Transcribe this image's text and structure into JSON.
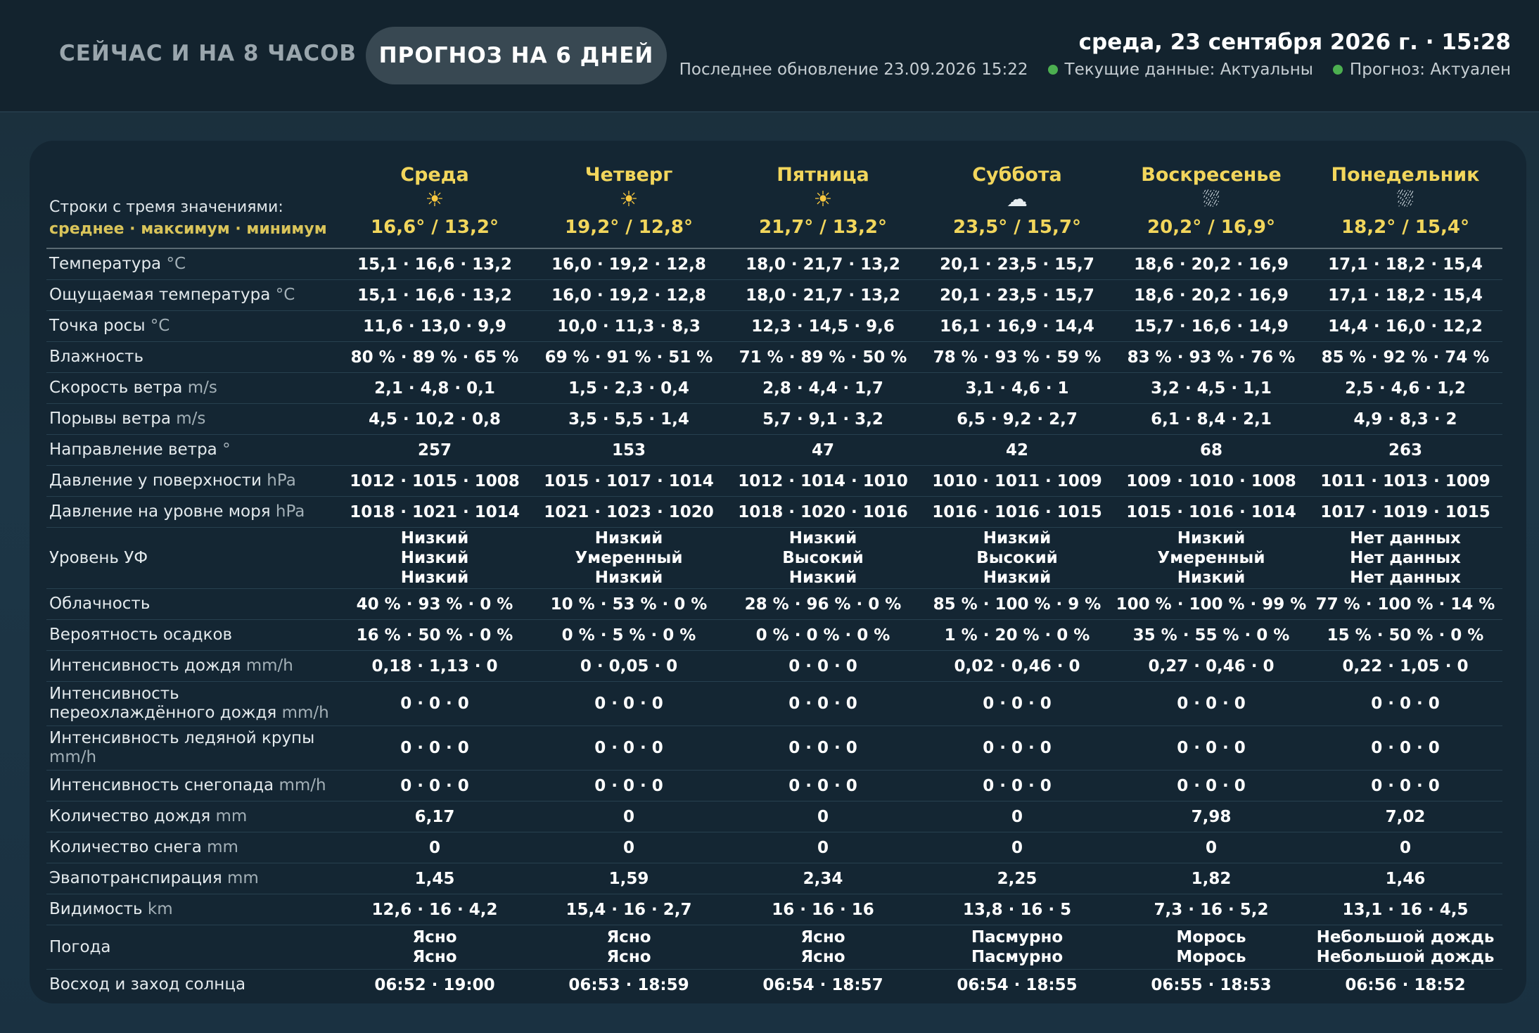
{
  "header": {
    "tab_now": "СЕЙЧАС И НА 8 ЧАСОВ",
    "tab_forecast": "ПРОГНОЗ НА 6 ДНЕЙ",
    "datetime": "среда, 23 сентября 2026 г. · 15:28",
    "last_update": "Последнее обновление 23.09.2026 15:22",
    "current_status": "Текущие данные: Актуальны",
    "forecast_status": "Прогноз: Актуален",
    "status_color": "#4caf50"
  },
  "legend": {
    "line1": "Строки с тремя значениями:",
    "line2": "среднее · максимум · минимум"
  },
  "days": [
    {
      "name": "Среда",
      "icon": "sun-icon",
      "range": "16,6° / 13,2°"
    },
    {
      "name": "Четверг",
      "icon": "sun-icon",
      "range": "19,2° / 12,8°"
    },
    {
      "name": "Пятница",
      "icon": "sun-icon",
      "range": "21,7° / 13,2°"
    },
    {
      "name": "Суббота",
      "icon": "cloud-icon",
      "range": "23,5° / 15,7°"
    },
    {
      "name": "Воскресенье",
      "icon": "rain-cloud-icon",
      "range": "20,2° / 16,9°"
    },
    {
      "name": "Понедельник",
      "icon": "rain-cloud-icon",
      "range": "18,2° / 15,4°"
    }
  ],
  "rows": [
    {
      "label": "Температура",
      "unit": "°C",
      "values": [
        "15,1 · 16,6 · 13,2",
        "16,0 · 19,2 · 12,8",
        "18,0 · 21,7 · 13,2",
        "20,1 · 23,5 · 15,7",
        "18,6 · 20,2 · 16,9",
        "17,1 · 18,2 · 15,4"
      ]
    },
    {
      "label": "Ощущаемая температура",
      "unit": "°C",
      "values": [
        "15,1 · 16,6 · 13,2",
        "16,0 · 19,2 · 12,8",
        "18,0 · 21,7 · 13,2",
        "20,1 · 23,5 · 15,7",
        "18,6 · 20,2 · 16,9",
        "17,1 · 18,2 · 15,4"
      ]
    },
    {
      "label": "Точка росы",
      "unit": "°C",
      "values": [
        "11,6 · 13,0 · 9,9",
        "10,0 · 11,3 · 8,3",
        "12,3 · 14,5 · 9,6",
        "16,1 · 16,9 · 14,4",
        "15,7 · 16,6 · 14,9",
        "14,4 · 16,0 · 12,2"
      ]
    },
    {
      "label": "Влажность",
      "unit": "",
      "values": [
        "80 % · 89 % · 65 %",
        "69 % · 91 % · 51 %",
        "71 % · 89 % · 50 %",
        "78 % · 93 % · 59 %",
        "83 % · 93 % · 76 %",
        "85 % · 92 % · 74 %"
      ]
    },
    {
      "label": "Скорость ветра",
      "unit": "m/s",
      "values": [
        "2,1 · 4,8 · 0,1",
        "1,5 · 2,3 · 0,4",
        "2,8 · 4,4 · 1,7",
        "3,1 · 4,6 · 1",
        "3,2 · 4,5 · 1,1",
        "2,5 · 4,6 · 1,2"
      ]
    },
    {
      "label": "Порывы ветра",
      "unit": "m/s",
      "values": [
        "4,5 · 10,2 · 0,8",
        "3,5 · 5,5 · 1,4",
        "5,7 · 9,1 · 3,2",
        "6,5 · 9,2 · 2,7",
        "6,1 · 8,4 · 2,1",
        "4,9 · 8,3 · 2"
      ]
    },
    {
      "label": "Направление ветра",
      "unit": "°",
      "values": [
        "257",
        "153",
        "47",
        "42",
        "68",
        "263"
      ]
    },
    {
      "label": "Давление у поверхности",
      "unit": "hPa",
      "values": [
        "1012 · 1015 · 1008",
        "1015 · 1017 · 1014",
        "1012 · 1014 · 1010",
        "1010 · 1011 · 1009",
        "1009 · 1010 · 1008",
        "1011 · 1013 · 1009"
      ]
    },
    {
      "label": "Давление на уровне моря",
      "unit": "hPa",
      "values": [
        "1018 · 1021 · 1014",
        "1021 · 1023 · 1020",
        "1018 · 1020 · 1016",
        "1016 · 1016 · 1015",
        "1015 · 1016 · 1014",
        "1017 · 1019 · 1015"
      ]
    },
    {
      "label": "Уровень УФ",
      "unit": "",
      "lines": [
        [
          "Низкий",
          "Низкий",
          "Низкий"
        ],
        [
          "Низкий",
          "Умеренный",
          "Низкий"
        ],
        [
          "Низкий",
          "Высокий",
          "Низкий"
        ],
        [
          "Низкий",
          "Высокий",
          "Низкий"
        ],
        [
          "Низкий",
          "Умеренный",
          "Низкий"
        ],
        [
          "Нет данных",
          "Нет данных",
          "Нет данных"
        ]
      ]
    },
    {
      "label": "Облачность",
      "unit": "",
      "values": [
        "40 % · 93 % · 0 %",
        "10 % · 53 % · 0 %",
        "28 % · 96 % · 0 %",
        "85 % · 100 % · 9 %",
        "100 % · 100 % · 99 %",
        "77 % · 100 % · 14 %"
      ]
    },
    {
      "label": "Вероятность осадков",
      "unit": "",
      "values": [
        "16 % · 50 % · 0 %",
        "0 % · 5 % · 0 %",
        "0 % · 0 % · 0 %",
        "1 % · 20 % · 0 %",
        "35 % · 55 % · 0 %",
        "15 % · 50 % · 0 %"
      ]
    },
    {
      "label": "Интенсивность дождя",
      "unit": "mm/h",
      "values": [
        "0,18 · 1,13 · 0",
        "0 · 0,05 · 0",
        "0 · 0 · 0",
        "0,02 · 0,46 · 0",
        "0,27 · 0,46 · 0",
        "0,22 · 1,05 · 0"
      ]
    },
    {
      "label": "Интенсивность переохлаждённого дождя",
      "unit": "mm/h",
      "values": [
        "0 · 0 · 0",
        "0 · 0 · 0",
        "0 · 0 · 0",
        "0 · 0 · 0",
        "0 · 0 · 0",
        "0 · 0 · 0"
      ]
    },
    {
      "label": "Интенсивность ледяной крупы",
      "unit": "mm/h",
      "values": [
        "0 · 0 · 0",
        "0 · 0 · 0",
        "0 · 0 · 0",
        "0 · 0 · 0",
        "0 · 0 · 0",
        "0 · 0 · 0"
      ]
    },
    {
      "label": "Интенсивность снегопада",
      "unit": "mm/h",
      "values": [
        "0 · 0 · 0",
        "0 · 0 · 0",
        "0 · 0 · 0",
        "0 · 0 · 0",
        "0 · 0 · 0",
        "0 · 0 · 0"
      ]
    },
    {
      "label": "Количество дождя",
      "unit": "mm",
      "values": [
        "6,17",
        "0",
        "0",
        "0",
        "7,98",
        "7,02"
      ]
    },
    {
      "label": "Количество снега",
      "unit": "mm",
      "values": [
        "0",
        "0",
        "0",
        "0",
        "0",
        "0"
      ]
    },
    {
      "label": "Эвапотранспирация",
      "unit": "mm",
      "values": [
        "1,45",
        "1,59",
        "2,34",
        "2,25",
        "1,82",
        "1,46"
      ]
    },
    {
      "label": "Видимость",
      "unit": "km",
      "values": [
        "12,6 · 16 · 4,2",
        "15,4 · 16 · 2,7",
        "16 · 16 · 16",
        "13,8 · 16 · 5",
        "7,3 · 16 · 5,2",
        "13,1 · 16 · 4,5"
      ]
    },
    {
      "label": "Погода",
      "unit": "",
      "lines": [
        [
          "Ясно",
          "Ясно"
        ],
        [
          "Ясно",
          "Ясно"
        ],
        [
          "Ясно",
          "Ясно"
        ],
        [
          "Пасмурно",
          "Пасмурно"
        ],
        [
          "Морось",
          "Морось"
        ],
        [
          "Небольшой дождь",
          "Небольшой дождь"
        ]
      ]
    },
    {
      "label": "Восход и заход солнца",
      "unit": "",
      "values": [
        "06:52 · 19:00",
        "06:53 · 18:59",
        "06:54 · 18:57",
        "06:54 · 18:55",
        "06:55 · 18:53",
        "06:56 · 18:52"
      ]
    }
  ]
}
